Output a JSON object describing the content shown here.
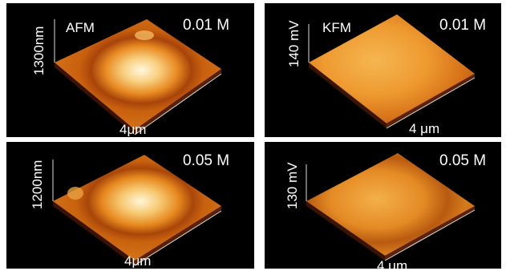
{
  "panels": [
    {
      "id": "afm-001",
      "mode": "AFM",
      "concentration": "0.01 M",
      "height_label": "1300nm",
      "width_label": "4μm"
    },
    {
      "id": "kfm-001",
      "mode": "KFM",
      "concentration": "0.01 M",
      "height_label": "140 mV",
      "width_label": "4 μm"
    },
    {
      "id": "afm-005",
      "mode": "",
      "concentration": "0.05 M",
      "height_label": "1200nm",
      "width_label": "4μm"
    },
    {
      "id": "kfm-005",
      "mode": "",
      "concentration": "0.05 M",
      "height_label": "130 mV",
      "width_label": "4 μm"
    }
  ],
  "colors": {
    "background": "#000000",
    "dark": "#5a1a00",
    "mid": "#c8580a",
    "bright": "#f2a23a",
    "peak": "#fff8e0"
  }
}
